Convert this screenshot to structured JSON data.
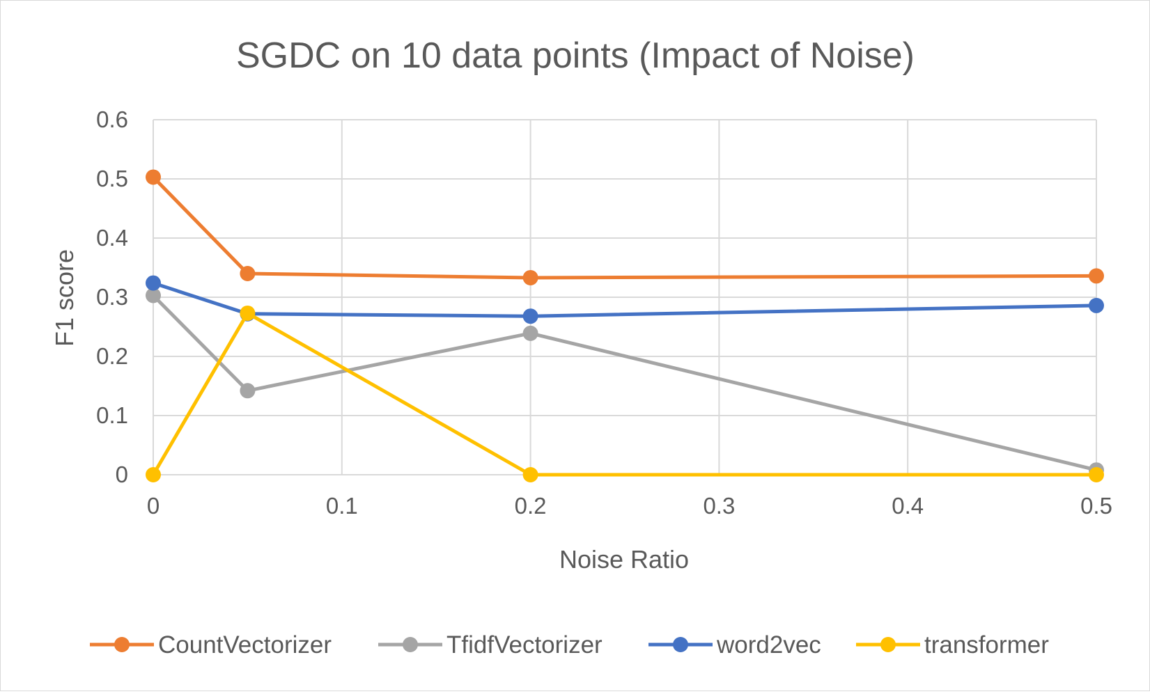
{
  "chart_data": {
    "type": "line",
    "title": "SGDC on 10 data points (Impact of Noise)",
    "xlabel": "Noise Ratio",
    "ylabel": "F1 score",
    "xlim": [
      0,
      0.5
    ],
    "ylim": [
      0,
      0.6
    ],
    "x_ticks": [
      "0",
      "0.1",
      "0.2",
      "0.3",
      "0.4",
      "0.5"
    ],
    "y_ticks": [
      "0",
      "0.1",
      "0.2",
      "0.3",
      "0.4",
      "0.5",
      "0.6"
    ],
    "grid": true,
    "legend_position": "bottom",
    "x": [
      0,
      0.05,
      0.2,
      0.5
    ],
    "series": [
      {
        "name": "CountVectorizer",
        "color": "#ED7D31",
        "values": [
          0.503,
          0.34,
          0.333,
          0.336
        ]
      },
      {
        "name": "TfidfVectorizer",
        "color": "#A5A5A5",
        "values": [
          0.303,
          0.142,
          0.239,
          0.008
        ]
      },
      {
        "name": "word2vec",
        "color": "#4472C4",
        "values": [
          0.324,
          0.272,
          0.268,
          0.286
        ]
      },
      {
        "name": "transformer",
        "color": "#FFC000",
        "values": [
          0.0,
          0.273,
          0.0,
          0.0
        ]
      }
    ]
  }
}
